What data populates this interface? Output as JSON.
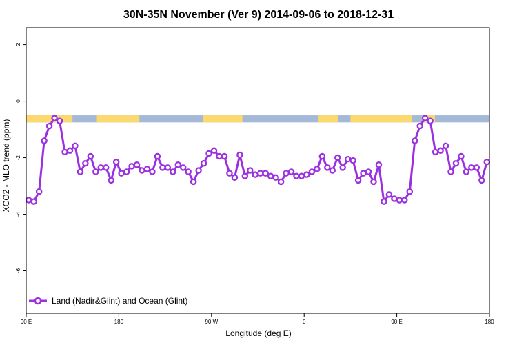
{
  "chart_data": {
    "type": "line",
    "title": "30N-35N November (Ver 9)   2014-09-06 to 2018-12-31",
    "xlabel": "Longitude (deg E)",
    "ylabel": "XCO2 - MLO trend (ppm)",
    "xlim": [
      90,
      540
    ],
    "ylim": [
      -7.5,
      2.6
    ],
    "x_ticks": [
      {
        "value": 90,
        "label": "90 E"
      },
      {
        "value": 180,
        "label": "180"
      },
      {
        "value": 270,
        "label": "90 W"
      },
      {
        "value": 360,
        "label": "0"
      },
      {
        "value": 450,
        "label": "90 E"
      },
      {
        "value": 540,
        "label": "180"
      }
    ],
    "y_ticks": [
      {
        "value": 2,
        "label": "2"
      },
      {
        "value": 0,
        "label": "0"
      },
      {
        "value": -2,
        "label": "-2"
      },
      {
        "value": -4,
        "label": "-4"
      },
      {
        "value": -6,
        "label": "-6"
      }
    ],
    "grid": false,
    "legend_position": "bottom-left",
    "land_mask_strip": {
      "y_top": -0.5,
      "y_bottom": -0.75,
      "ocean_color": "#a4b8d8",
      "land_color": "#fcd96e",
      "land_segments": [
        [
          90,
          135
        ],
        [
          158,
          200
        ],
        [
          262,
          300
        ],
        [
          374,
          393
        ],
        [
          405,
          465
        ],
        [
          477,
          487
        ]
      ]
    },
    "series": [
      {
        "name": "Land (Nadir&Glint) and Ocean (Glint)",
        "color": "#9b30e0",
        "x": [
          92.5,
          97.5,
          102.5,
          107.5,
          112.5,
          117.5,
          122.5,
          127.5,
          132.5,
          137.5,
          142.5,
          147.5,
          152.5,
          157.5,
          162.5,
          167.5,
          172.5,
          177.5,
          182.5,
          187.5,
          192.5,
          197.5,
          202.5,
          207.5,
          212.5,
          217.5,
          222.5,
          227.5,
          232.5,
          237.5,
          242.5,
          247.5,
          252.5,
          257.5,
          262.5,
          267.5,
          272.5,
          277.5,
          282.5,
          287.5,
          292.5,
          297.5,
          302.5,
          307.5,
          312.5,
          317.5,
          322.5,
          327.5,
          332.5,
          337.5,
          342.5,
          347.5,
          352.5,
          357.5,
          362.5,
          367.5,
          372.5,
          377.5,
          382.5,
          387.5,
          392.5,
          397.5,
          402.5,
          407.5,
          412.5,
          417.5,
          422.5,
          427.5,
          432.5,
          437.5,
          442.5,
          447.5,
          452.5,
          457.5,
          462.5,
          467.5,
          472.5,
          477.5,
          482.5,
          487.5,
          492.5,
          497.5,
          502.5,
          507.5,
          512.5,
          517.5,
          522.5,
          527.5,
          532.5,
          537.5
        ],
        "values": [
          -3.5,
          -3.55,
          -3.2,
          -1.4,
          -0.88,
          -0.6,
          -0.7,
          -1.8,
          -1.75,
          -1.58,
          -2.5,
          -2.2,
          -1.95,
          -2.5,
          -2.35,
          -2.35,
          -2.8,
          -2.15,
          -2.55,
          -2.5,
          -2.3,
          -2.25,
          -2.45,
          -2.4,
          -2.5,
          -1.95,
          -2.35,
          -2.35,
          -2.5,
          -2.25,
          -2.35,
          -2.5,
          -2.85,
          -2.45,
          -2.2,
          -1.85,
          -1.75,
          -1.95,
          -1.95,
          -2.55,
          -2.7,
          -1.9,
          -2.65,
          -2.45,
          -2.6,
          -2.55,
          -2.55,
          -2.65,
          -2.7,
          -2.85,
          -2.55,
          -2.5,
          -2.65,
          -2.65,
          -2.6,
          -2.5,
          -2.4,
          -1.95,
          -2.35,
          -2.45,
          -2.0,
          -2.35,
          -2.05,
          -2.1,
          -2.8,
          -2.55,
          -2.5,
          -2.85,
          -2.25,
          -3.55,
          -3.3,
          -3.45,
          -3.5,
          -3.5,
          -3.2,
          -1.4,
          -0.88,
          -0.6,
          -0.7,
          -1.8,
          -1.75,
          -1.58,
          -2.5,
          -2.2,
          -1.95,
          -2.5,
          -2.35,
          -2.35,
          -2.8,
          -2.15
        ]
      }
    ]
  }
}
